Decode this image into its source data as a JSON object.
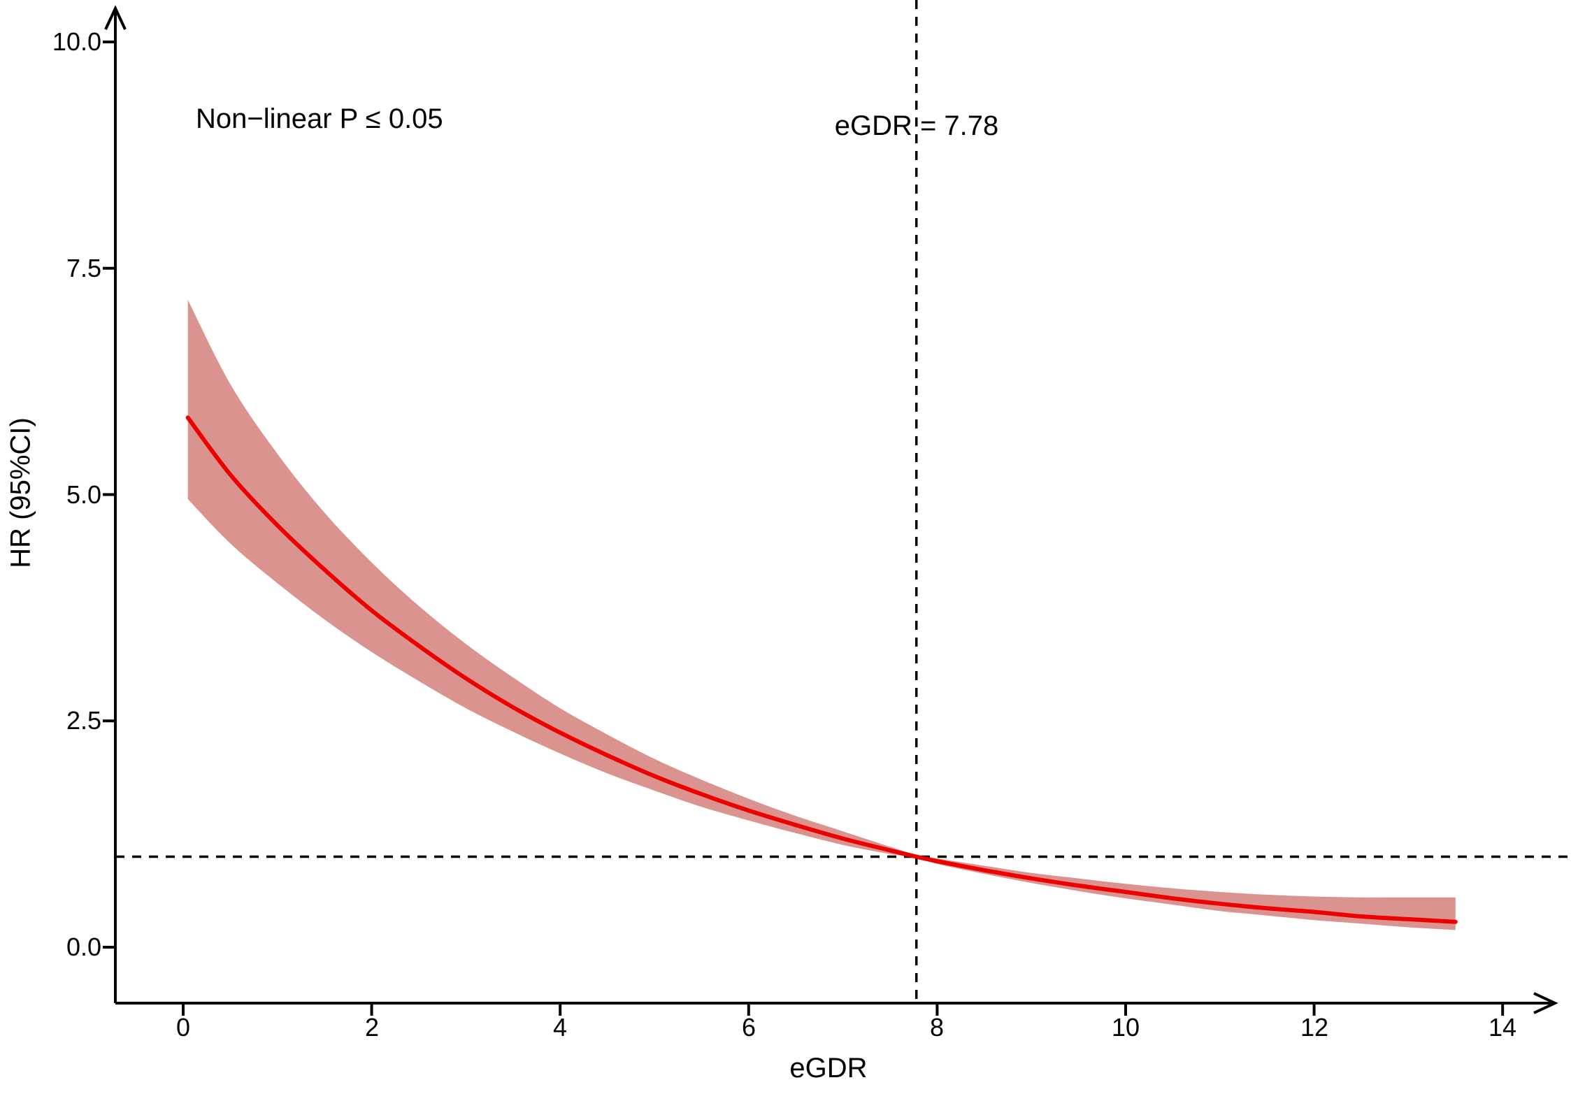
{
  "figure": {
    "background": "#FFFFFF"
  },
  "chart_data": {
    "type": "line",
    "title": "",
    "xlabel": "eGDR",
    "ylabel": "HR (95%CI)",
    "xlim": [
      0,
      14
    ],
    "ylim": [
      0,
      10
    ],
    "grid": false,
    "legend": "none",
    "x_ticks": [
      0,
      2,
      4,
      6,
      8,
      10,
      12,
      14
    ],
    "x_tick_labels": [
      "0",
      "2",
      "4",
      "6",
      "8",
      "10",
      "12",
      "14"
    ],
    "y_ticks": [
      0,
      2.5,
      5,
      7.5,
      10
    ],
    "y_tick_labels": [
      "0.0",
      "2.5",
      "5.0",
      "7.5",
      "10.0"
    ],
    "annotations": [
      {
        "id": "nonlinear-p",
        "text": "Non−linear P ≤ 0.05",
        "x": 1.2,
        "y": 9.2
      },
      {
        "id": "egdr-reference-label",
        "text": "eGDR = 7.78",
        "x": 7.78,
        "y": 9.1
      }
    ],
    "reference_lines": {
      "horizontal_hr": 1.0,
      "vertical_egdr": 7.78,
      "style": "dashed",
      "color": "#000000"
    },
    "line_color": "#EC0000",
    "band_color": "#DA938E",
    "axis_color": "#000000",
    "series": [
      {
        "name": "HR (95%CI)",
        "x": [
          0.05,
          0.5,
          1.0,
          1.5,
          2.0,
          2.5,
          3.0,
          3.5,
          4.0,
          4.5,
          5.0,
          5.5,
          6.0,
          6.5,
          7.0,
          7.5,
          7.78,
          8.0,
          8.5,
          9.0,
          9.5,
          10.0,
          10.5,
          11.0,
          11.5,
          12.0,
          12.5,
          13.0,
          13.5
        ],
        "hr": [
          5.85,
          5.22,
          4.66,
          4.17,
          3.72,
          3.33,
          2.97,
          2.65,
          2.37,
          2.12,
          1.89,
          1.69,
          1.51,
          1.35,
          1.2,
          1.07,
          1.0,
          0.95,
          0.85,
          0.76,
          0.68,
          0.61,
          0.54,
          0.48,
          0.43,
          0.39,
          0.34,
          0.31,
          0.28
        ],
        "lower": [
          4.95,
          4.46,
          4.02,
          3.62,
          3.26,
          2.94,
          2.64,
          2.38,
          2.14,
          1.92,
          1.73,
          1.55,
          1.4,
          1.26,
          1.13,
          1.03,
          0.99,
          0.92,
          0.81,
          0.71,
          0.62,
          0.54,
          0.47,
          0.4,
          0.35,
          0.3,
          0.26,
          0.22,
          0.19
        ],
        "upper": [
          7.15,
          6.22,
          5.45,
          4.8,
          4.25,
          3.77,
          3.35,
          2.98,
          2.64,
          2.35,
          2.08,
          1.85,
          1.64,
          1.45,
          1.28,
          1.11,
          1.02,
          0.98,
          0.9,
          0.82,
          0.76,
          0.7,
          0.65,
          0.61,
          0.58,
          0.56,
          0.55,
          0.55,
          0.55
        ]
      }
    ]
  }
}
